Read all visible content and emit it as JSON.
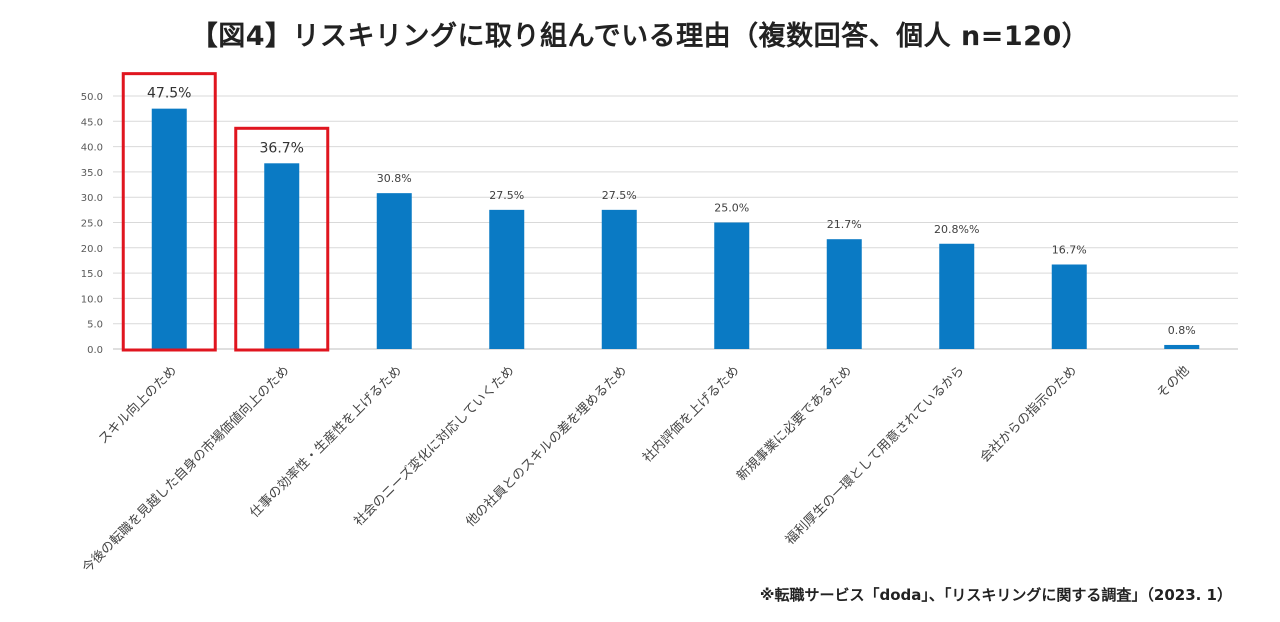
{
  "title": "【図4】リスキリングに取り組んでいる理由（複数回答、個人 n=120）",
  "source": "※転職サービス「doda」、「リスキリングに関する調査」（2023. 1）",
  "colors": {
    "bar": "#0a7ac4",
    "highlight": "#e0151f",
    "grid": "#d9d9d9"
  },
  "chart_data": {
    "type": "bar",
    "title": "【図4】リスキリングに取り組んでいる理由（複数回答、個人 n=120）",
    "xlabel": "",
    "ylabel": "",
    "ylim": [
      0,
      50
    ],
    "yticks": [
      "0.0",
      "5.0",
      "10.0",
      "15.0",
      "20.0",
      "25.0",
      "30.0",
      "35.0",
      "40.0",
      "45.0",
      "50.0"
    ],
    "categories": [
      "スキル向上のため",
      "今後の転職を見越した自身の市場価値向上のため",
      "仕事の効率性・生産性を上げるため",
      "社会のニーズ変化に対応していくため",
      "他の社員とのスキルの差を埋めるため",
      "社内評価を上げるため",
      "新規事業に必要であるため",
      "福利厚生の一環として用意されているから",
      "会社からの指示のため",
      "その他"
    ],
    "values": [
      47.5,
      36.7,
      30.8,
      27.5,
      27.5,
      25.0,
      21.7,
      20.8,
      16.7,
      0.8
    ],
    "labels": [
      "47.5%",
      "36.7%",
      "30.8%",
      "27.5%",
      "27.5%",
      "25.0%",
      "21.7%",
      "20.8%%",
      "16.7%",
      "0.8%"
    ],
    "highlighted": [
      0,
      1
    ],
    "grid": true
  }
}
